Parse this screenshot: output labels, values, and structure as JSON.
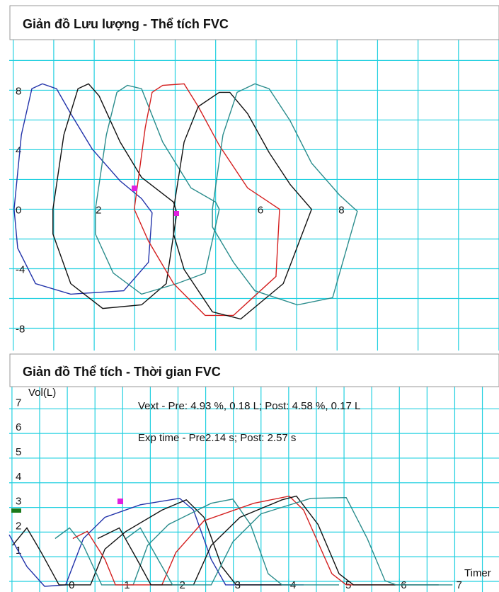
{
  "chart_data": [
    {
      "type": "line",
      "title": "Giản đồ Lưu lượng - Thể tích FVC",
      "xlim": [
        -0.1,
        12
      ],
      "ylim": [
        -9.5,
        11.4
      ],
      "xticks": [
        2,
        6,
        8
      ],
      "yticks": [
        -8,
        -4,
        0,
        4,
        8
      ],
      "grid": true,
      "series": [
        {
          "color": "#2233aa",
          "x": [
            0.02,
            0.2,
            0.46,
            0.72,
            1.07,
            1.42,
            1.95,
            2.64,
            3.17,
            3.43,
            3.34,
            2.73,
            1.42,
            0.55,
            0.11,
            0.02
          ],
          "values": [
            0,
            5.0,
            8.1,
            8.43,
            8.1,
            6.43,
            4.05,
            1.9,
            0.71,
            -0.24,
            -3.57,
            -5.48,
            -5.71,
            -5.0,
            -2.62,
            0
          ]
        },
        {
          "color": "#111111",
          "x": [
            0.98,
            1.25,
            1.6,
            1.86,
            2.12,
            2.64,
            3.17,
            3.96,
            4.04,
            3.78,
            3.17,
            2.21,
            1.42,
            0.98,
            0.98
          ],
          "values": [
            0,
            5.0,
            8.1,
            8.43,
            7.62,
            4.52,
            2.14,
            0.48,
            -0.24,
            -5.0,
            -6.43,
            -6.67,
            -5.0,
            -1.67,
            0
          ]
        },
        {
          "color": "#2a8c8c",
          "x": [
            2.03,
            2.3,
            2.56,
            2.82,
            3.17,
            3.69,
            4.39,
            5.0,
            5.09,
            4.74,
            4.04,
            3.17,
            2.47,
            2.03,
            2.03
          ],
          "values": [
            0,
            5.0,
            7.86,
            8.33,
            8.1,
            4.52,
            1.43,
            0.48,
            0,
            -4.29,
            -5.0,
            -5.71,
            -4.29,
            -1.67,
            0
          ]
        },
        {
          "color": "#d42020",
          "x": [
            2.99,
            3.26,
            3.43,
            3.69,
            4.22,
            4.57,
            5.09,
            5.79,
            6.58,
            6.49,
            5.44,
            4.74,
            3.96,
            3.34,
            2.99
          ],
          "values": [
            0,
            5.48,
            7.86,
            8.33,
            8.43,
            6.9,
            4.29,
            1.43,
            0,
            -4.52,
            -7.14,
            -7.14,
            -5.0,
            -2.14,
            0
          ]
        },
        {
          "color": "#111111",
          "x": [
            3.96,
            4.22,
            4.57,
            5.09,
            5.35,
            5.79,
            6.32,
            6.84,
            7.37,
            6.67,
            5.62,
            4.92,
            4.22,
            3.96,
            3.96
          ],
          "values": [
            0,
            4.52,
            6.9,
            7.86,
            7.86,
            6.43,
            3.81,
            1.67,
            0,
            -5.0,
            -7.38,
            -6.9,
            -4.05,
            -1.67,
            0
          ]
        },
        {
          "color": "#2a8c8c",
          "x": [
            4.92,
            5.18,
            5.53,
            5.97,
            6.32,
            6.84,
            7.37,
            8.06,
            8.5,
            7.89,
            7.02,
            5.97,
            5.44,
            4.92,
            4.92
          ],
          "values": [
            0,
            5.0,
            7.86,
            8.43,
            8.1,
            5.95,
            3.1,
            0.95,
            -0.14,
            -5.95,
            -6.43,
            -5.48,
            -3.57,
            -1.19,
            0
          ]
        }
      ]
    },
    {
      "type": "line",
      "title": "Giản đồ Thể tích - Thời gian FVC",
      "y_label": "Vol(L)",
      "x_label": "Timer",
      "annotations": [
        "Vext - Pre: 4.93 %,  0.18 L; Post: 4.58 %, 0.17 L",
        "Exp time - Pre2.14 s; Post: 2.57 s"
      ],
      "xlim": [
        -1.05,
        7.8
      ],
      "ylim": [
        -0.43,
        7.9
      ],
      "xticks": [
        0,
        1,
        2,
        3,
        4,
        5,
        6,
        7
      ],
      "yticks": [
        1,
        2,
        3,
        4,
        5,
        6,
        7
      ],
      "grid": true,
      "series": [
        {
          "color": "#2233aa",
          "x": [
            -1.05,
            -0.73,
            -0.41,
            -0.03,
            0.29,
            0.68,
            1.32,
            2.03,
            2.28,
            2.6,
            2.86,
            4.27
          ],
          "values": [
            1.89,
            0.6,
            -0.2,
            -0.14,
            1.74,
            2.6,
            3.11,
            3.37,
            2.89,
            0.89,
            -0.14,
            -0.14
          ]
        },
        {
          "color": "#111111",
          "x": [
            -0.99,
            -0.73,
            -0.47,
            -0.15,
            0.42,
            0.68,
            1.06,
            1.71,
            2.15,
            2.47,
            2.79,
            3.05,
            4.14
          ],
          "values": [
            1.46,
            2.17,
            1.17,
            -0.14,
            -0.14,
            1.31,
            2.03,
            2.89,
            3.31,
            2.6,
            0.6,
            -0.14,
            -0.14
          ]
        },
        {
          "color": "#2a8c8c",
          "x": [
            -0.22,
            0.04,
            0.29,
            0.62,
            1.19,
            1.45,
            1.83,
            2.6,
            2.99,
            3.31,
            3.63,
            3.88,
            4.91
          ],
          "values": [
            1.74,
            2.17,
            1.46,
            -0.14,
            -0.14,
            1.46,
            2.31,
            3.17,
            3.34,
            2.31,
            0.31,
            -0.14,
            -0.14
          ]
        },
        {
          "color": "#d42020",
          "x": [
            0.1,
            0.36,
            0.68,
            0.87,
            1.71,
            1.96,
            2.47,
            3.37,
            4.01,
            4.27,
            4.78,
            5.04,
            5.94
          ],
          "values": [
            1.74,
            2.03,
            0.89,
            -0.14,
            -0.14,
            1.17,
            2.46,
            3.17,
            3.46,
            2.89,
            0.31,
            -0.14,
            -0.14
          ]
        },
        {
          "color": "#111111",
          "x": [
            0.55,
            0.94,
            1.26,
            1.51,
            2.28,
            2.6,
            3.12,
            3.88,
            4.14,
            4.53,
            4.91,
            5.17,
            6.71
          ],
          "values": [
            1.74,
            2.17,
            0.89,
            -0.14,
            -0.14,
            1.46,
            2.6,
            3.31,
            3.46,
            2.31,
            0.31,
            -0.14,
            -0.14
          ]
        },
        {
          "color": "#2a8c8c",
          "x": [
            1.06,
            1.32,
            1.64,
            1.9,
            2.6,
            2.99,
            3.5,
            4.4,
            5.04,
            5.42,
            5.74,
            5.94,
            6.96
          ],
          "values": [
            1.74,
            2.17,
            0.89,
            -0.14,
            -0.14,
            1.6,
            2.74,
            3.37,
            3.4,
            1.74,
            0.03,
            -0.14,
            -0.14
          ]
        }
      ]
    }
  ]
}
